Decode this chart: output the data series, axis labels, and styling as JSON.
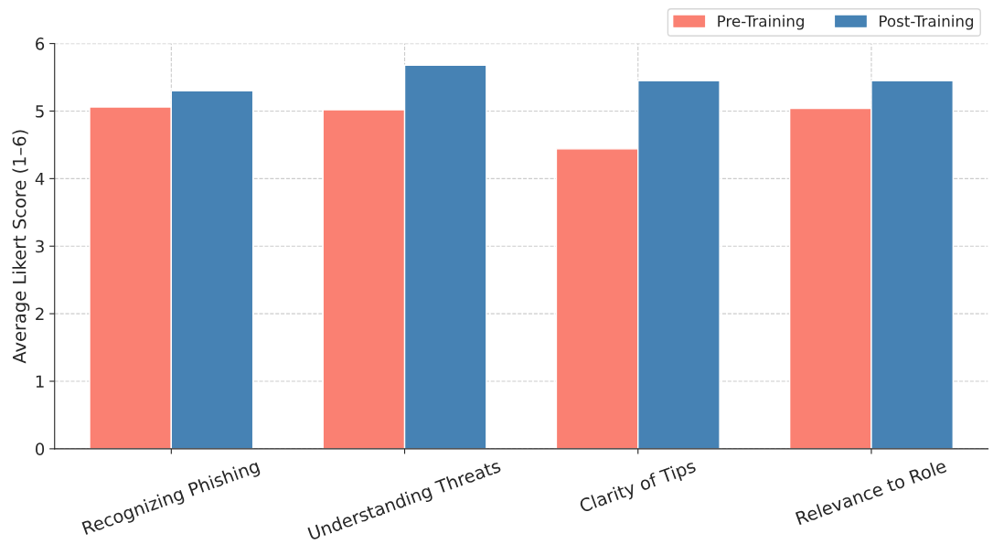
{
  "chart_data": {
    "type": "bar",
    "ylabel": "Average Likert Score (1–6)",
    "categories": [
      "Recognizing Phishing",
      "Understanding Threats",
      "Clarity of Tips",
      "Relevance to Role"
    ],
    "series": [
      {
        "name": "Pre-Training",
        "color": "#fa8072",
        "values": [
          5.06,
          5.02,
          4.44,
          5.04
        ]
      },
      {
        "name": "Post-Training",
        "color": "#4682b4",
        "values": [
          5.3,
          5.68,
          5.45,
          5.45
        ]
      }
    ],
    "ylim": [
      0,
      6
    ],
    "yticks": [
      0,
      1,
      2,
      3,
      4,
      5,
      6
    ],
    "grid": true,
    "legend": "top right"
  }
}
